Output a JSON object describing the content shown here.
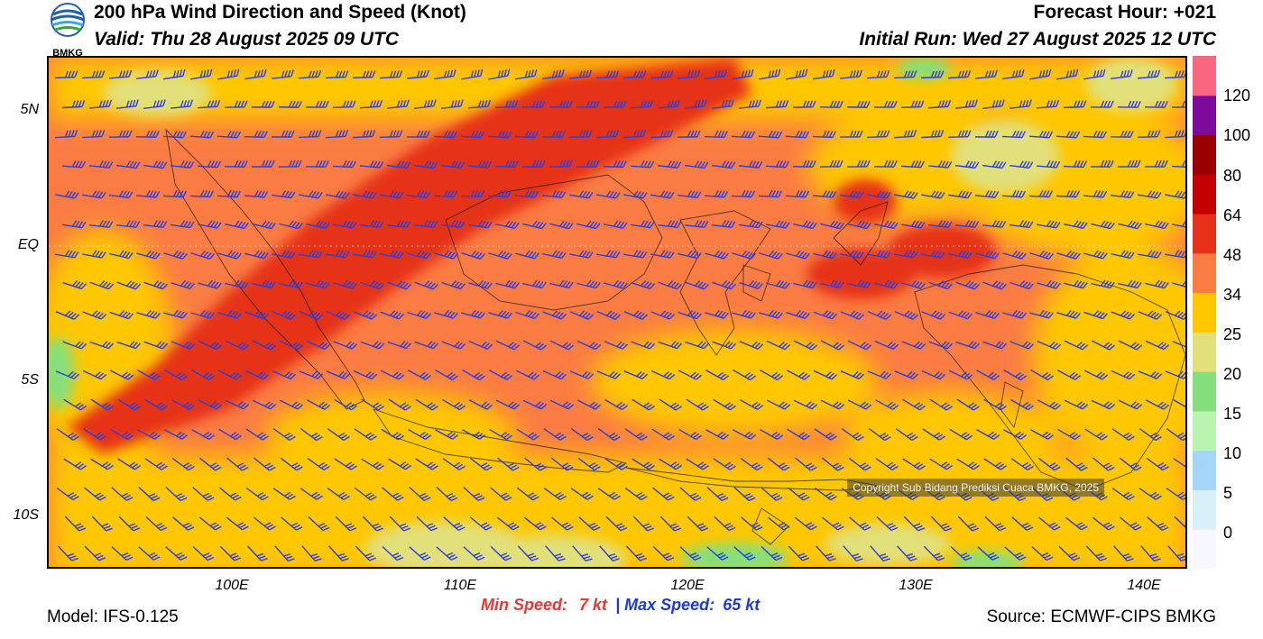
{
  "header": {
    "title": "200 hPa Wind Direction and Speed (Knot)",
    "valid": "Valid: Thu 28 August 2025 09 UTC",
    "forecast_hour": "Forecast Hour: +021",
    "initial_run": "Initial Run: Wed 27 August 2025 12 UTC",
    "logo_text": "BMKG"
  },
  "map": {
    "lat_labels": [
      "5N",
      "EQ",
      "5S",
      "10S"
    ],
    "lon_labels": [
      "100E",
      "110E",
      "120E",
      "130E",
      "140E"
    ],
    "copyright": "Copyright Sub Bidang Prediksi Cuaca BMKG, 2025",
    "barb_color": "#2b3fe0"
  },
  "colorbar": {
    "labels": [
      "120",
      "100",
      "80",
      "64",
      "48",
      "34",
      "25",
      "20",
      "15",
      "10",
      "5",
      "0"
    ],
    "colors": [
      "#f7f7ff",
      "#d9effa",
      "#a4d6f7",
      "#b9f5b0",
      "#84e07c",
      "#e2e07a",
      "#fec700",
      "#fb7c43",
      "#e63118",
      "#c40000",
      "#9a0000",
      "#7e0a9c",
      "#f8667f"
    ]
  },
  "footer": {
    "model": "Model: IFS-0.125",
    "source": "Source: ECMWF-CIPS BMKG",
    "min_label": "Min Speed:",
    "min_value": "7 kt",
    "separator": "|",
    "max_label": "Max Speed:",
    "max_value": "65 kt"
  }
}
